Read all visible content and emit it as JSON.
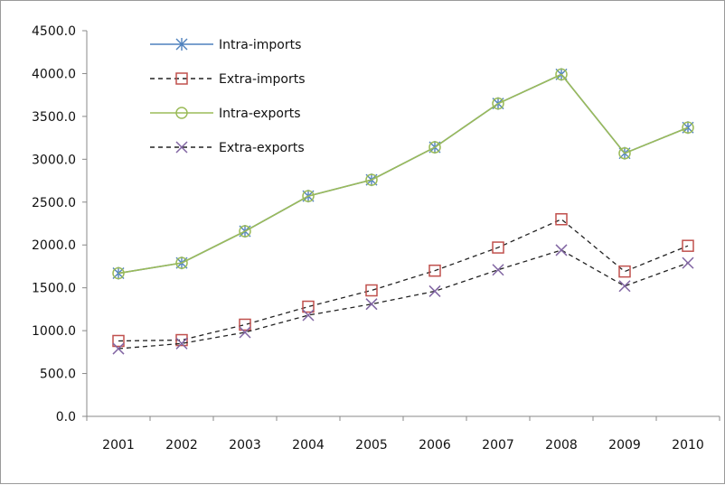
{
  "chart_data": {
    "type": "line",
    "title": "",
    "xlabel": "",
    "ylabel": "",
    "categories": [
      "2001",
      "2002",
      "2003",
      "2004",
      "2005",
      "2006",
      "2007",
      "2008",
      "2009",
      "2010"
    ],
    "ylim": [
      0,
      4500
    ],
    "y_ticks": [
      "0.0",
      "500.0",
      "1000.0",
      "1500.0",
      "2000.0",
      "2500.0",
      "3000.0",
      "3500.0",
      "4000.0",
      "4500.0"
    ],
    "grid": false,
    "legend_position": "top-left",
    "series": [
      {
        "name": "Intra-imports",
        "values": [
          1670,
          1790,
          2160,
          2570,
          2760,
          3140,
          3650,
          3990,
          3070,
          3370
        ],
        "color": "#4f81bd",
        "line": "solid",
        "marker": "asterisk"
      },
      {
        "name": "Extra-imports",
        "values": [
          880,
          890,
          1070,
          1280,
          1470,
          1700,
          1970,
          2300,
          1690,
          1990
        ],
        "color": "#c0504d",
        "line": "dashed",
        "marker": "square"
      },
      {
        "name": "Intra-exports",
        "values": [
          1670,
          1790,
          2160,
          2570,
          2760,
          3140,
          3650,
          3990,
          3070,
          3370
        ],
        "color": "#9bbb59",
        "line": "solid",
        "marker": "circle"
      },
      {
        "name": "Extra-exports",
        "values": [
          790,
          850,
          980,
          1180,
          1310,
          1460,
          1710,
          1940,
          1520,
          1790
        ],
        "color": "#8064a2",
        "line": "dashed",
        "marker": "x"
      }
    ]
  }
}
